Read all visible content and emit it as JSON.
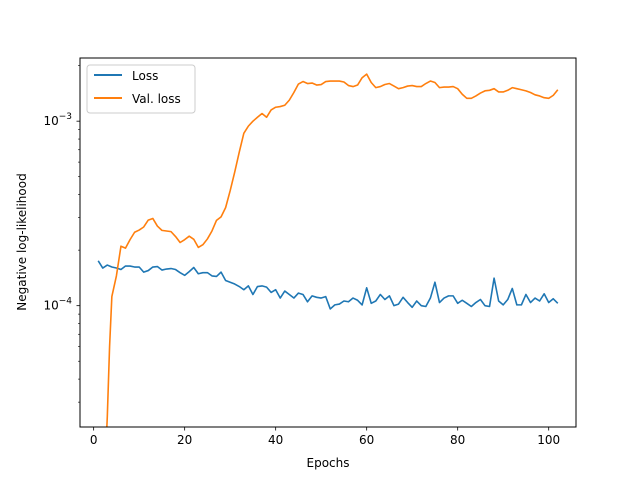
{
  "chart_data": {
    "type": "line",
    "title": "",
    "xlabel": "Epochs",
    "ylabel": "Negative log-likelihood",
    "yscale": "log",
    "xlim": [
      -3,
      106
    ],
    "ylim": [
      2.2e-05,
      0.0022
    ],
    "xticks": [
      0,
      20,
      40,
      60,
      80,
      100
    ],
    "yticks": [
      {
        "value": 0.0001,
        "base": "10",
        "exp": "−4"
      },
      {
        "value": 0.001,
        "base": "10",
        "exp": "−3"
      }
    ],
    "grid": false,
    "legend_position": "upper-left",
    "series": [
      {
        "name": "Loss",
        "color": "#1f77b4",
        "x": [
          1,
          2,
          3,
          4,
          5,
          6,
          7,
          8,
          9,
          10,
          11,
          12,
          13,
          14,
          15,
          16,
          17,
          18,
          19,
          20,
          21,
          22,
          23,
          24,
          25,
          26,
          27,
          28,
          29,
          30,
          31,
          32,
          33,
          34,
          35,
          36,
          37,
          38,
          39,
          40,
          41,
          42,
          43,
          44,
          45,
          46,
          47,
          48,
          49,
          50,
          51,
          52,
          53,
          54,
          55,
          56,
          57,
          58,
          59,
          60,
          61,
          62,
          63,
          64,
          65,
          66,
          67,
          68,
          69,
          70,
          71,
          72,
          73,
          74,
          75,
          76,
          77,
          78,
          79,
          80,
          81,
          82,
          83,
          84,
          85,
          86,
          87,
          88,
          89,
          90,
          91,
          92,
          93,
          94,
          95,
          96,
          97,
          98,
          99,
          100,
          101,
          102
        ],
        "y": [
          0.000175,
          0.00016,
          0.000166,
          0.000162,
          0.00016,
          0.000157,
          0.000164,
          0.000164,
          0.000162,
          0.000162,
          0.000152,
          0.000155,
          0.000162,
          0.000163,
          0.000156,
          0.000158,
          0.000159,
          0.000157,
          0.000151,
          0.000146,
          0.000153,
          0.000161,
          0.000149,
          0.000151,
          0.000151,
          0.000145,
          0.000144,
          0.000152,
          0.000137,
          0.000134,
          0.000131,
          0.000127,
          0.000122,
          0.000128,
          0.000115,
          0.000127,
          0.000128,
          0.000126,
          0.000118,
          0.000122,
          0.00011,
          0.00012,
          0.000115,
          0.00011,
          0.000117,
          0.000115,
          0.000105,
          0.000113,
          0.000111,
          0.00011,
          0.000112,
          9.6e-05,
          0.000101,
          0.000102,
          0.000106,
          0.000105,
          0.00011,
          0.000107,
          0.000101,
          0.000125,
          0.000103,
          0.000106,
          0.000115,
          0.000108,
          0.000113,
          0.0001,
          0.000102,
          0.000111,
          0.000104,
          9.8e-05,
          0.000106,
          0.0001,
          9.9e-05,
          0.00011,
          0.000134,
          0.000104,
          0.00011,
          0.000113,
          0.000113,
          0.000103,
          0.000107,
          0.000103,
          9.9e-05,
          0.000104,
          0.000108,
          0.0001,
          9.9e-05,
          0.000141,
          0.000106,
          0.000101,
          0.000108,
          0.000124,
          0.000101,
          0.000101,
          0.000115,
          0.000104,
          0.00011,
          0.000106,
          0.000116,
          0.000104,
          0.000109,
          0.000103
        ]
      },
      {
        "name": "Val. loss",
        "color": "#ff7f0e",
        "x": [
          2.9,
          3.0,
          3.5,
          4,
          5,
          6,
          7,
          8,
          9,
          10,
          11,
          12,
          13,
          14,
          15,
          16,
          17,
          18,
          19,
          20,
          21,
          22,
          23,
          24,
          25,
          26,
          27,
          28,
          29,
          30,
          31,
          32,
          33,
          34,
          35,
          36,
          37,
          38,
          39,
          40,
          41,
          42,
          43,
          44,
          45,
          46,
          47,
          48,
          49,
          50,
          51,
          52,
          53,
          54,
          55,
          56,
          57,
          58,
          59,
          60,
          61,
          62,
          63,
          64,
          65,
          66,
          67,
          68,
          69,
          70,
          71,
          72,
          73,
          74,
          75,
          76,
          77,
          78,
          79,
          80,
          81,
          82,
          83,
          84,
          85,
          86,
          87,
          88,
          89,
          90,
          91,
          92,
          93,
          94,
          95,
          96,
          97,
          98,
          99,
          100,
          101,
          102
        ],
        "y": [
          2.2e-05,
          2.5e-05,
          6e-05,
          0.000112,
          0.000145,
          0.00021,
          0.000205,
          0.000228,
          0.00025,
          0.000257,
          0.000267,
          0.000291,
          0.000297,
          0.00027,
          0.000256,
          0.000254,
          0.000252,
          0.000237,
          0.00022,
          0.000228,
          0.000238,
          0.000229,
          0.000207,
          0.000214,
          0.00023,
          0.000254,
          0.00029,
          0.000303,
          0.00034,
          0.00042,
          0.00053,
          0.00068,
          0.00086,
          0.00094,
          0.001,
          0.00105,
          0.0011,
          0.00105,
          0.00115,
          0.00119,
          0.0012,
          0.00122,
          0.0013,
          0.00143,
          0.00159,
          0.00164,
          0.0016,
          0.00161,
          0.00157,
          0.00158,
          0.00164,
          0.00165,
          0.00165,
          0.00165,
          0.00163,
          0.00156,
          0.00154,
          0.00157,
          0.00172,
          0.0018,
          0.00162,
          0.00152,
          0.00154,
          0.00158,
          0.0016,
          0.00155,
          0.0015,
          0.00152,
          0.00155,
          0.00156,
          0.00154,
          0.00154,
          0.0016,
          0.00165,
          0.00162,
          0.00152,
          0.00153,
          0.00153,
          0.00154,
          0.0015,
          0.0014,
          0.00133,
          0.00133,
          0.00137,
          0.00142,
          0.00146,
          0.00147,
          0.0015,
          0.00144,
          0.00144,
          0.00147,
          0.00152,
          0.0015,
          0.00148,
          0.00146,
          0.00143,
          0.00139,
          0.00137,
          0.00134,
          0.00133,
          0.00138,
          0.00148
        ]
      }
    ]
  }
}
